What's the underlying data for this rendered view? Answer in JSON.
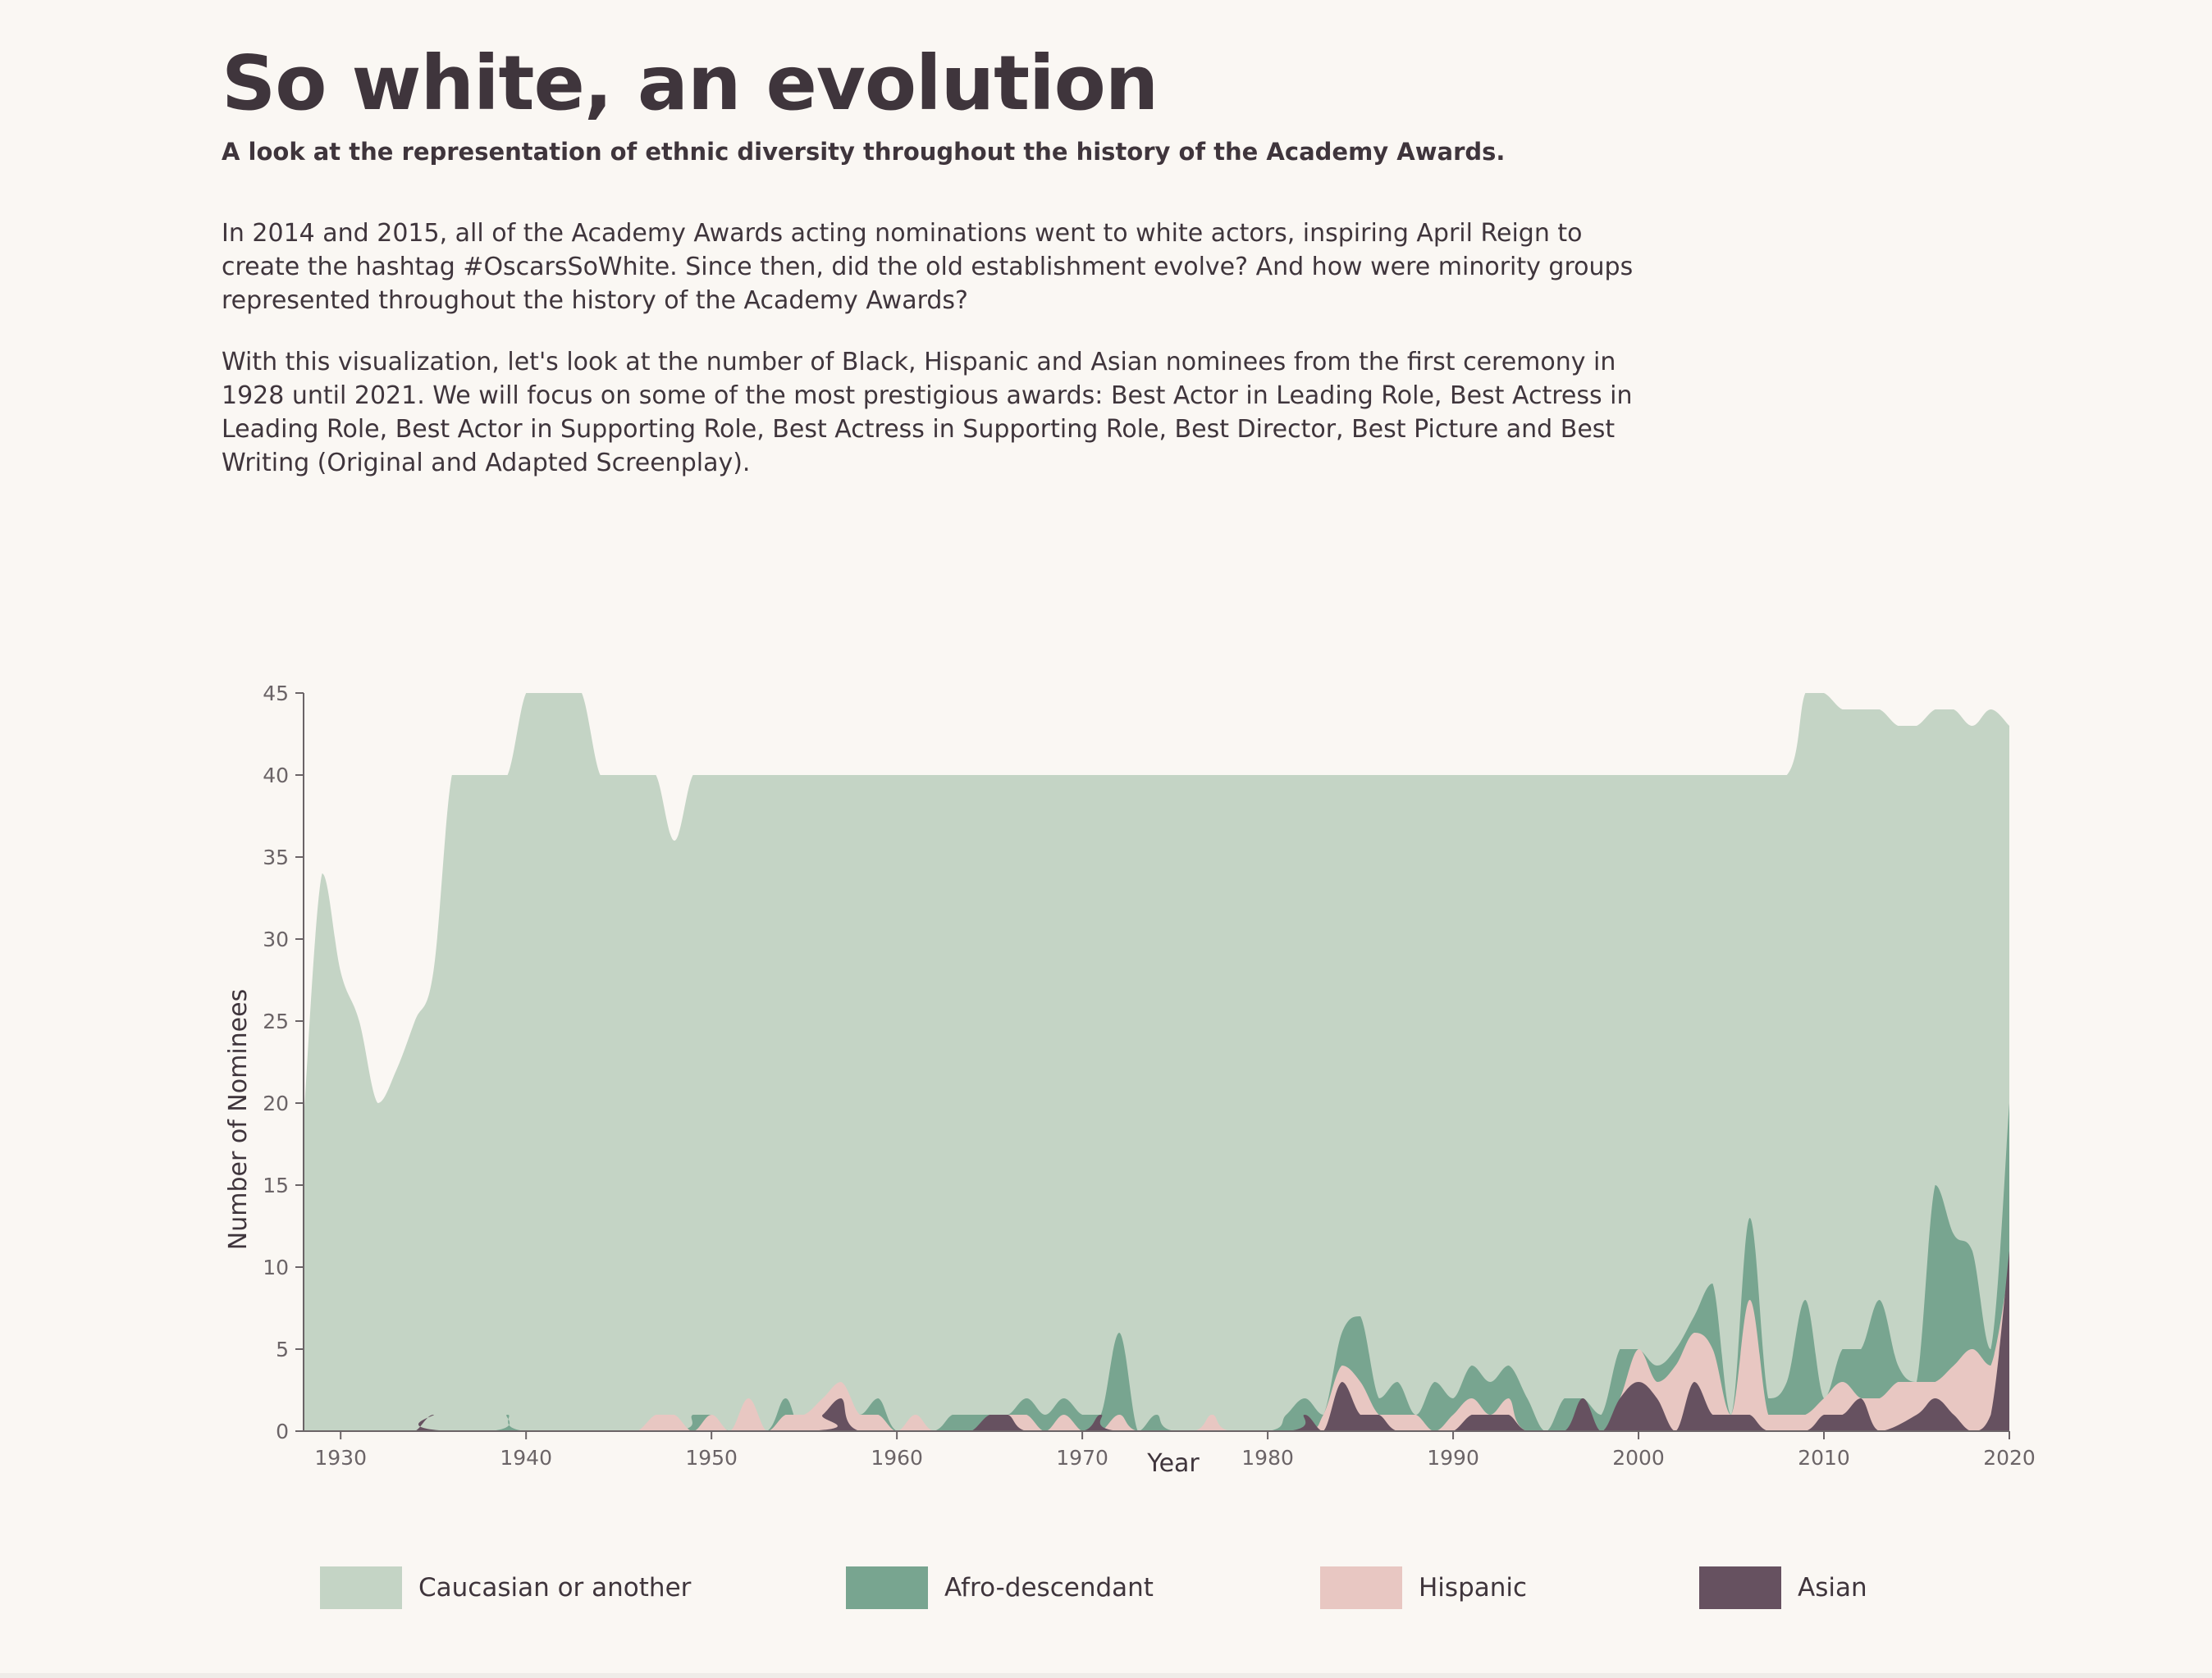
{
  "page": {
    "title": "So white, an evolution",
    "subtitle": "A look at the representation of ethnic diversity throughout the history of the Academy Awards.",
    "paragraphs": [
      "In 2014 and 2015, all of the Academy Awards acting nominations went to white actors, inspiring April Reign to create the hashtag #OscarsSoWhite. Since then, did the old establishment evolve? And how were minority groups represented throughout the history of the Academy Awards?",
      "With this visualization, let's look at the number of Black, Hispanic and Asian nominees from the first ceremony in 1928 until 2021. We will focus on some of the most prestigious awards: Best Actor in Leading Role, Best Actress in Leading Role, Best Actor in Supporting Role, Best Actress in Supporting Role, Best Director, Best Picture and Best Writing (Original and Adapted Screenplay)."
    ]
  },
  "chart_data": {
    "type": "area",
    "stacking": "overlapping (total nominee count drawn behind minority group counts)",
    "xlabel": "Year",
    "ylabel": "Number of Nominees",
    "xlim": [
      1928,
      2020
    ],
    "ylim": [
      0,
      45
    ],
    "xticks": [
      1930,
      1940,
      1950,
      1960,
      1970,
      1980,
      1990,
      2000,
      2010,
      2020
    ],
    "yticks": [
      0,
      5,
      10,
      15,
      20,
      25,
      30,
      35,
      40,
      45
    ],
    "grid": false,
    "legend_position": "bottom",
    "series": [
      {
        "name": "Caucasian or another",
        "color": "#c4d4c5",
        "points": [
          [
            1928,
            19
          ],
          [
            1929,
            34
          ],
          [
            1930,
            28
          ],
          [
            1931,
            25
          ],
          [
            1932,
            20
          ],
          [
            1933,
            22
          ],
          [
            1934,
            25
          ],
          [
            1935,
            28
          ],
          [
            1936,
            40
          ],
          [
            1937,
            40
          ],
          [
            1938,
            40
          ],
          [
            1939,
            40
          ],
          [
            1940,
            45
          ],
          [
            1941,
            45
          ],
          [
            1942,
            45
          ],
          [
            1943,
            45
          ],
          [
            1944,
            40
          ],
          [
            1945,
            40
          ],
          [
            1946,
            40
          ],
          [
            1947,
            40
          ],
          [
            1948,
            36
          ],
          [
            1949,
            40
          ],
          [
            1950,
            40
          ],
          [
            1955,
            40
          ],
          [
            1960,
            40
          ],
          [
            1965,
            40
          ],
          [
            1970,
            40
          ],
          [
            1975,
            40
          ],
          [
            1980,
            40
          ],
          [
            1985,
            40
          ],
          [
            1990,
            40
          ],
          [
            1995,
            40
          ],
          [
            2000,
            40
          ],
          [
            2005,
            40
          ],
          [
            2008,
            40
          ],
          [
            2009,
            45
          ],
          [
            2010,
            45
          ],
          [
            2011,
            44
          ],
          [
            2012,
            44
          ],
          [
            2013,
            44
          ],
          [
            2014,
            43
          ],
          [
            2015,
            43
          ],
          [
            2016,
            44
          ],
          [
            2017,
            44
          ],
          [
            2018,
            43
          ],
          [
            2019,
            44
          ],
          [
            2020,
            43
          ]
        ]
      },
      {
        "name": "Afro-descendant",
        "color": "#78a590",
        "points": [
          [
            1928,
            0
          ],
          [
            1938,
            0
          ],
          [
            1939,
            1
          ],
          [
            1940,
            0
          ],
          [
            1948,
            0
          ],
          [
            1949,
            1
          ],
          [
            1950,
            1
          ],
          [
            1951,
            0
          ],
          [
            1953,
            0
          ],
          [
            1954,
            2
          ],
          [
            1955,
            0
          ],
          [
            1957,
            2
          ],
          [
            1958,
            1
          ],
          [
            1959,
            2
          ],
          [
            1960,
            0
          ],
          [
            1962,
            0
          ],
          [
            1963,
            1
          ],
          [
            1964,
            1
          ],
          [
            1965,
            1
          ],
          [
            1966,
            1
          ],
          [
            1967,
            2
          ],
          [
            1968,
            1
          ],
          [
            1969,
            2
          ],
          [
            1970,
            1
          ],
          [
            1971,
            1
          ],
          [
            1972,
            6
          ],
          [
            1973,
            0
          ],
          [
            1974,
            1
          ],
          [
            1975,
            0
          ],
          [
            1980,
            0
          ],
          [
            1981,
            1
          ],
          [
            1982,
            2
          ],
          [
            1983,
            1
          ],
          [
            1984,
            6
          ],
          [
            1985,
            7
          ],
          [
            1986,
            2
          ],
          [
            1987,
            3
          ],
          [
            1988,
            1
          ],
          [
            1989,
            3
          ],
          [
            1990,
            2
          ],
          [
            1991,
            4
          ],
          [
            1992,
            3
          ],
          [
            1993,
            4
          ],
          [
            1994,
            2
          ],
          [
            1995,
            0
          ],
          [
            1996,
            2
          ],
          [
            1997,
            2
          ],
          [
            1998,
            1
          ],
          [
            1999,
            5
          ],
          [
            2000,
            5
          ],
          [
            2001,
            4
          ],
          [
            2002,
            5
          ],
          [
            2003,
            7
          ],
          [
            2004,
            9
          ],
          [
            2005,
            1
          ],
          [
            2006,
            13
          ],
          [
            2007,
            2
          ],
          [
            2008,
            3
          ],
          [
            2009,
            8
          ],
          [
            2010,
            2
          ],
          [
            2011,
            5
          ],
          [
            2012,
            5
          ],
          [
            2013,
            8
          ],
          [
            2014,
            4
          ],
          [
            2015,
            3
          ],
          [
            2016,
            15
          ],
          [
            2017,
            12
          ],
          [
            2018,
            11
          ],
          [
            2019,
            5
          ],
          [
            2020,
            20
          ]
        ]
      },
      {
        "name": "Hispanic",
        "color": "#e8c7c2",
        "points": [
          [
            1928,
            0
          ],
          [
            1945,
            0
          ],
          [
            1946,
            0
          ],
          [
            1947,
            1
          ],
          [
            1948,
            1
          ],
          [
            1949,
            0
          ],
          [
            1950,
            1
          ],
          [
            1951,
            0
          ],
          [
            1952,
            2
          ],
          [
            1953,
            0
          ],
          [
            1954,
            1
          ],
          [
            1955,
            1
          ],
          [
            1956,
            2
          ],
          [
            1957,
            3
          ],
          [
            1958,
            1
          ],
          [
            1959,
            1
          ],
          [
            1960,
            0
          ],
          [
            1961,
            1
          ],
          [
            1962,
            0
          ],
          [
            1964,
            0
          ],
          [
            1965,
            1
          ],
          [
            1966,
            1
          ],
          [
            1967,
            1
          ],
          [
            1968,
            0
          ],
          [
            1969,
            1
          ],
          [
            1970,
            0
          ],
          [
            1971,
            0
          ],
          [
            1972,
            1
          ],
          [
            1973,
            0
          ],
          [
            1976,
            0
          ],
          [
            1977,
            1
          ],
          [
            1978,
            0
          ],
          [
            1982,
            0
          ],
          [
            1983,
            1
          ],
          [
            1984,
            4
          ],
          [
            1985,
            3
          ],
          [
            1986,
            1
          ],
          [
            1987,
            1
          ],
          [
            1988,
            1
          ],
          [
            1989,
            0
          ],
          [
            1990,
            1
          ],
          [
            1991,
            2
          ],
          [
            1992,
            1
          ],
          [
            1993,
            2
          ],
          [
            1994,
            0
          ],
          [
            1998,
            0
          ],
          [
            1999,
            2
          ],
          [
            2000,
            5
          ],
          [
            2001,
            3
          ],
          [
            2002,
            4
          ],
          [
            2003,
            6
          ],
          [
            2004,
            5
          ],
          [
            2005,
            1
          ],
          [
            2006,
            8
          ],
          [
            2007,
            1
          ],
          [
            2008,
            1
          ],
          [
            2009,
            1
          ],
          [
            2010,
            2
          ],
          [
            2011,
            3
          ],
          [
            2012,
            2
          ],
          [
            2013,
            2
          ],
          [
            2014,
            3
          ],
          [
            2015,
            3
          ],
          [
            2016,
            3
          ],
          [
            2017,
            4
          ],
          [
            2018,
            5
          ],
          [
            2019,
            4
          ],
          [
            2020,
            10
          ]
        ]
      },
      {
        "name": "Asian",
        "color": "#665160",
        "points": [
          [
            1928,
            0
          ],
          [
            1933,
            0
          ],
          [
            1934,
            0
          ],
          [
            1935,
            1
          ],
          [
            1936,
            0
          ],
          [
            1955,
            0
          ],
          [
            1956,
            1
          ],
          [
            1957,
            2
          ],
          [
            1958,
            0
          ],
          [
            1963,
            0
          ],
          [
            1964,
            0
          ],
          [
            1965,
            1
          ],
          [
            1966,
            1
          ],
          [
            1967,
            0
          ],
          [
            1970,
            0
          ],
          [
            1971,
            1
          ],
          [
            1972,
            0
          ],
          [
            1981,
            0
          ],
          [
            1982,
            1
          ],
          [
            1983,
            0
          ],
          [
            1984,
            3
          ],
          [
            1985,
            1
          ],
          [
            1986,
            1
          ],
          [
            1987,
            0
          ],
          [
            1989,
            0
          ],
          [
            1990,
            0
          ],
          [
            1991,
            1
          ],
          [
            1992,
            1
          ],
          [
            1993,
            1
          ],
          [
            1994,
            0
          ],
          [
            1996,
            0
          ],
          [
            1997,
            2
          ],
          [
            1998,
            0
          ],
          [
            1999,
            2
          ],
          [
            2000,
            3
          ],
          [
            2001,
            2
          ],
          [
            2002,
            0
          ],
          [
            2003,
            3
          ],
          [
            2004,
            1
          ],
          [
            2005,
            1
          ],
          [
            2006,
            1
          ],
          [
            2007,
            0
          ],
          [
            2009,
            0
          ],
          [
            2010,
            1
          ],
          [
            2011,
            1
          ],
          [
            2012,
            2
          ],
          [
            2013,
            0
          ],
          [
            2015,
            1
          ],
          [
            2016,
            2
          ],
          [
            2017,
            1
          ],
          [
            2018,
            0
          ],
          [
            2019,
            1
          ],
          [
            2020,
            11
          ]
        ]
      }
    ]
  }
}
